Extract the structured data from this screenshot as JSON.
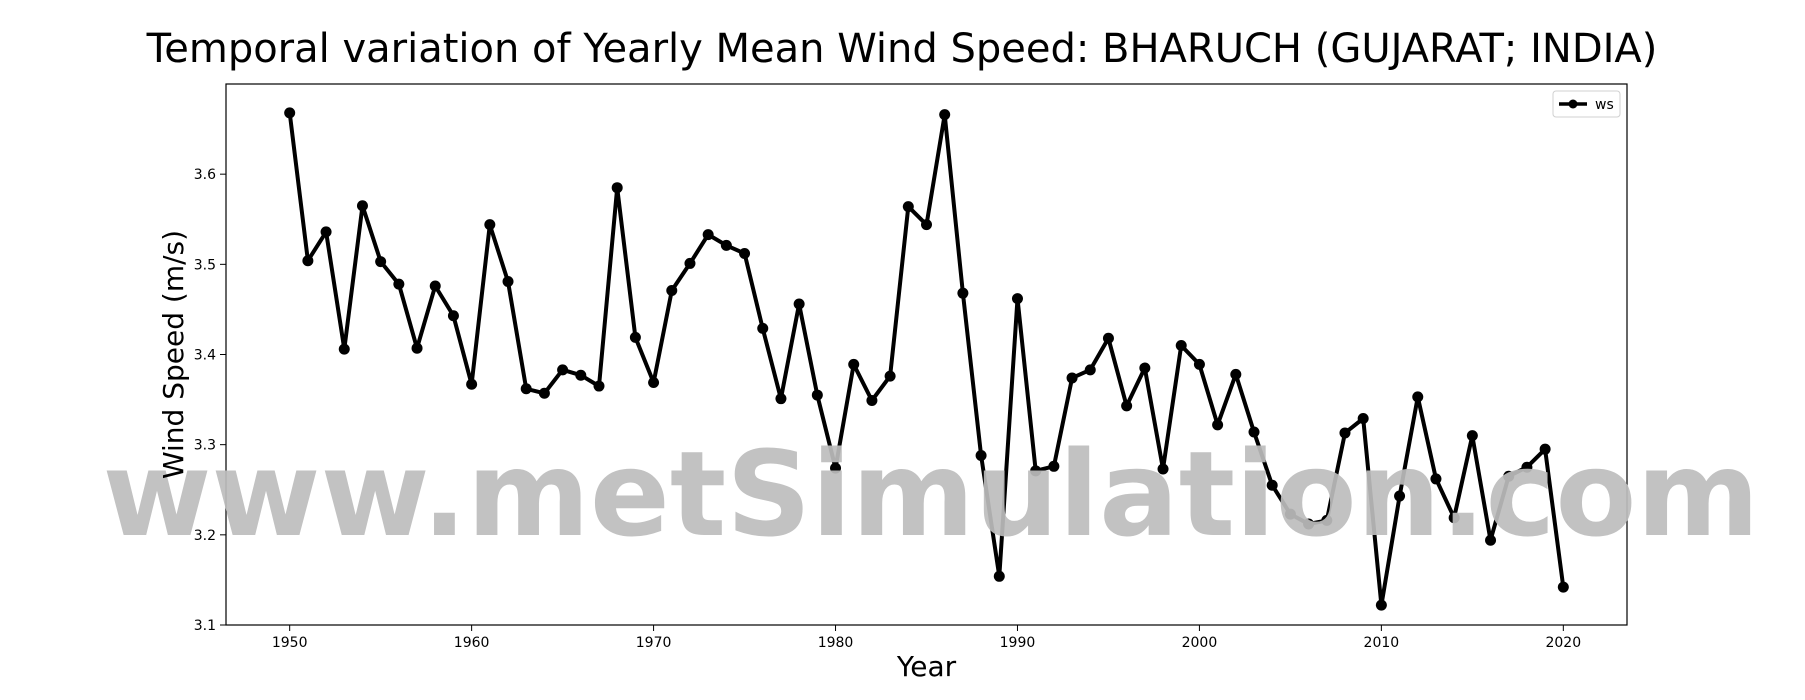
{
  "chart_data": {
    "type": "line",
    "title": "Temporal variation of Yearly Mean Wind Speed: BHARUCH (GUJARAT; INDIA)",
    "xlabel": "Year",
    "ylabel": "Wind Speed (m/s)",
    "xlim": [
      1946.5,
      2023.5
    ],
    "ylim": [
      3.1,
      3.7
    ],
    "xticks": [
      1950,
      1960,
      1970,
      1980,
      1990,
      2000,
      2010,
      2020
    ],
    "yticks": [
      3.1,
      3.2,
      3.3,
      3.4,
      3.5,
      3.6
    ],
    "grid": false,
    "legend_position": "top-right",
    "line_color": "#000000",
    "series": [
      {
        "name": "ws",
        "x": [
          1950,
          1951,
          1952,
          1953,
          1954,
          1955,
          1956,
          1957,
          1958,
          1959,
          1960,
          1961,
          1962,
          1963,
          1964,
          1965,
          1966,
          1967,
          1968,
          1969,
          1970,
          1971,
          1972,
          1973,
          1974,
          1975,
          1976,
          1977,
          1978,
          1979,
          1980,
          1981,
          1982,
          1983,
          1984,
          1985,
          1986,
          1987,
          1988,
          1989,
          1990,
          1991,
          1992,
          1993,
          1994,
          1995,
          1996,
          1997,
          1998,
          1999,
          2000,
          2001,
          2002,
          2003,
          2004,
          2005,
          2006,
          2007,
          2008,
          2009,
          2010,
          2011,
          2012,
          2013,
          2014,
          2015,
          2016,
          2017,
          2018,
          2019,
          2020
        ],
        "values": [
          3.668,
          3.504,
          3.536,
          3.406,
          3.565,
          3.503,
          3.478,
          3.407,
          3.476,
          3.443,
          3.367,
          3.544,
          3.481,
          3.362,
          3.357,
          3.383,
          3.377,
          3.365,
          3.585,
          3.419,
          3.369,
          3.471,
          3.501,
          3.533,
          3.521,
          3.512,
          3.429,
          3.351,
          3.456,
          3.355,
          3.274,
          3.389,
          3.349,
          3.376,
          3.564,
          3.544,
          3.666,
          3.468,
          3.288,
          3.154,
          3.462,
          3.271,
          3.276,
          3.374,
          3.383,
          3.418,
          3.343,
          3.385,
          3.273,
          3.41,
          3.389,
          3.322,
          3.378,
          3.314,
          3.255,
          3.223,
          3.212,
          3.216,
          3.313,
          3.329,
          3.122,
          3.243,
          3.353,
          3.262,
          3.219,
          3.31,
          3.194,
          3.265,
          3.275,
          3.295,
          3.142
        ]
      }
    ],
    "watermark": "www.metSimulation.com"
  }
}
